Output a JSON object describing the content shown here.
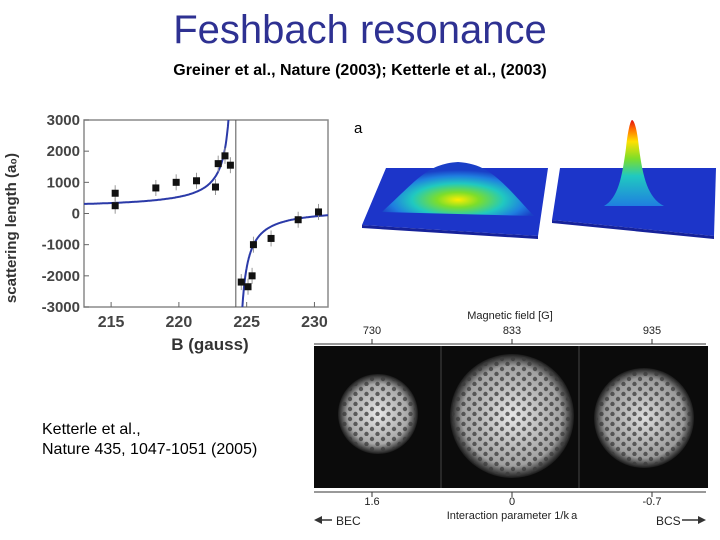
{
  "title": "Feshbach resonance",
  "subtitle": "Greiner et al., Nature (2003); Ketterle et al., (2003)",
  "reference": {
    "line1": "Ketterle et al.,",
    "line2": "Nature 435, 1047-1051 (2005)"
  },
  "peaks_panel": {
    "label": "a"
  },
  "vortex_panel": {
    "magnetic_field_title": "Magnetic field [G]",
    "field_ticks": [
      "730",
      "833",
      "935"
    ],
    "interaction_ticks": [
      "1.6",
      "0",
      "-0.7"
    ],
    "interaction_label": "Interaction parameter 1/k a",
    "bec_label": "BEC",
    "bcs_label": "BCS"
  },
  "chart_data": {
    "type": "scatter",
    "xlabel": "B (gauss)",
    "ylabel": "scattering length (a₀)",
    "xlim": [
      213,
      231
    ],
    "ylim": [
      -3000,
      3000
    ],
    "xticks": [
      215,
      220,
      225,
      230
    ],
    "yticks": [
      3000,
      2000,
      1000,
      0,
      -1000,
      -2000,
      -3000
    ],
    "resonance_B": 224.2,
    "background_a": 170,
    "width_B": 9,
    "points": [
      {
        "x": 215.3,
        "y": 650
      },
      {
        "x": 215.3,
        "y": 250
      },
      {
        "x": 218.3,
        "y": 820
      },
      {
        "x": 219.8,
        "y": 1000
      },
      {
        "x": 221.3,
        "y": 1050
      },
      {
        "x": 222.7,
        "y": 850
      },
      {
        "x": 222.9,
        "y": 1600
      },
      {
        "x": 223.4,
        "y": 1850
      },
      {
        "x": 223.8,
        "y": 1550
      },
      {
        "x": 224.6,
        "y": -2200
      },
      {
        "x": 225.1,
        "y": -2350
      },
      {
        "x": 225.4,
        "y": -2000
      },
      {
        "x": 225.5,
        "y": -1000
      },
      {
        "x": 226.8,
        "y": -800
      },
      {
        "x": 228.8,
        "y": -200
      },
      {
        "x": 230.3,
        "y": 50
      }
    ]
  }
}
